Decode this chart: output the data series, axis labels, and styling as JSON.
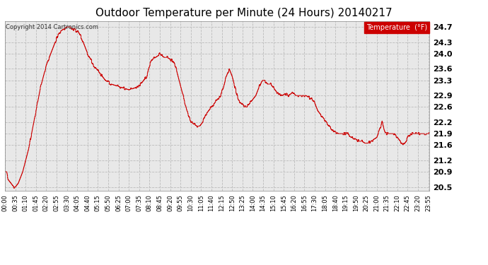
{
  "title": "Outdoor Temperature per Minute (24 Hours) 20140217",
  "copyright_text": "Copyright 2014 Cartronics.com",
  "legend_label": "Temperature  (°F)",
  "line_color": "#cc0000",
  "legend_bg": "#cc0000",
  "legend_text_color": "#ffffff",
  "background_color": "#ffffff",
  "plot_bg_color": "#f0f0f0",
  "grid_color": "#bbbbbb",
  "ylim": [
    20.4,
    24.85
  ],
  "yticks": [
    20.5,
    20.9,
    21.2,
    21.6,
    21.9,
    22.2,
    22.6,
    22.9,
    23.3,
    23.6,
    24.0,
    24.3,
    24.7
  ],
  "xtick_labels": [
    "00:00",
    "00:35",
    "01:10",
    "01:45",
    "02:20",
    "02:55",
    "03:30",
    "04:05",
    "04:40",
    "05:15",
    "05:50",
    "06:25",
    "07:00",
    "07:35",
    "08:10",
    "08:45",
    "09:20",
    "09:55",
    "10:30",
    "11:05",
    "11:40",
    "12:15",
    "12:50",
    "13:25",
    "14:00",
    "14:35",
    "15:10",
    "15:45",
    "16:20",
    "16:55",
    "17:30",
    "18:05",
    "18:40",
    "19:15",
    "19:50",
    "20:25",
    "21:00",
    "21:35",
    "22:10",
    "22:45",
    "23:20",
    "23:55"
  ],
  "title_fontsize": 11,
  "axis_fontsize": 7,
  "copyright_fontsize": 7
}
